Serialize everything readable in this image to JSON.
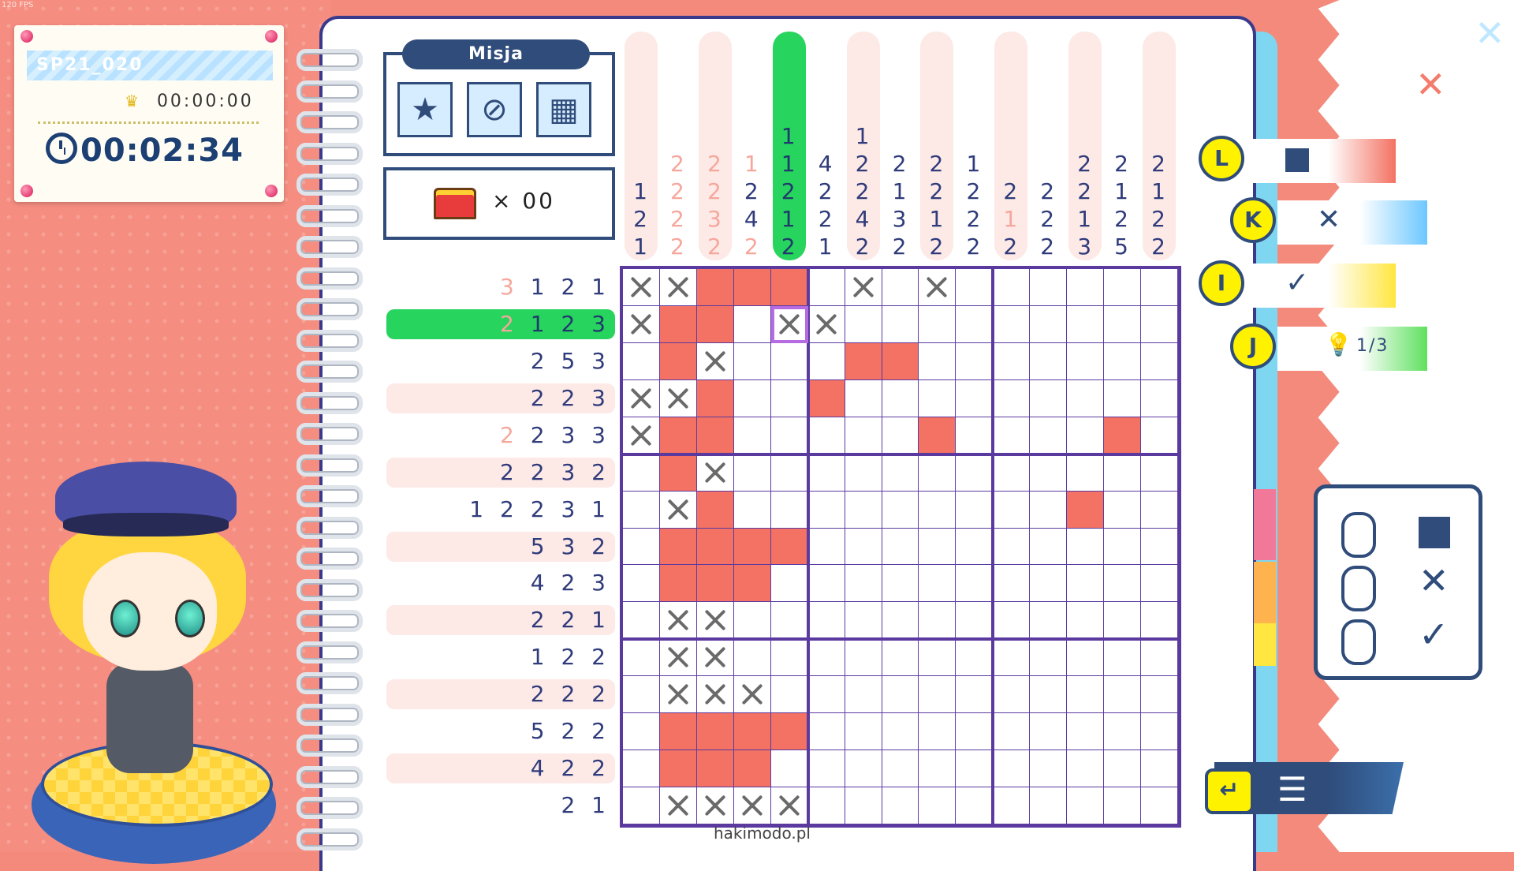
{
  "fps": "120 FPS",
  "timer": {
    "level_id": "SP21_020",
    "best_time": "00:00:00",
    "current_time": "00:02:34",
    "icons": [
      "crown-icon",
      "clock-icon"
    ]
  },
  "mission": {
    "title": "Misja",
    "icons": [
      "star-mission-icon",
      "no-hint-mission-icon",
      "mistakes-mission-icon"
    ],
    "chest_count": "× 00"
  },
  "column_clues": [
    {
      "nums": [
        "1",
        "2",
        "1"
      ],
      "faded": [
        false,
        false,
        false
      ]
    },
    {
      "nums": [
        "2",
        "2",
        "2",
        "2"
      ],
      "faded": [
        true,
        true,
        true,
        true
      ]
    },
    {
      "nums": [
        "2",
        "2",
        "3",
        "2"
      ],
      "faded": [
        true,
        true,
        true,
        true
      ]
    },
    {
      "nums": [
        "1",
        "2",
        "4",
        "2"
      ],
      "faded": [
        true,
        false,
        false,
        true
      ]
    },
    {
      "nums": [
        "1",
        "1",
        "2",
        "1",
        "2"
      ],
      "faded": [
        false,
        false,
        false,
        false,
        false
      ],
      "active": true
    },
    {
      "nums": [
        "4",
        "2",
        "2",
        "1"
      ],
      "faded": [
        false,
        false,
        false,
        false
      ]
    },
    {
      "nums": [
        "1",
        "2",
        "2",
        "4",
        "2"
      ],
      "faded": [
        false,
        false,
        false,
        false,
        false
      ]
    },
    {
      "nums": [
        "2",
        "1",
        "3",
        "2"
      ],
      "faded": [
        false,
        false,
        false,
        false
      ]
    },
    {
      "nums": [
        "2",
        "2",
        "1",
        "2"
      ],
      "faded": [
        false,
        false,
        false,
        false
      ]
    },
    {
      "nums": [
        "1",
        "2",
        "2",
        "2"
      ],
      "faded": [
        false,
        false,
        false,
        false
      ]
    },
    {
      "nums": [
        "2",
        "1",
        "2"
      ],
      "faded": [
        false,
        true,
        false
      ]
    },
    {
      "nums": [
        "2",
        "2",
        "2"
      ],
      "faded": [
        false,
        false,
        false
      ]
    },
    {
      "nums": [
        "2",
        "2",
        "1",
        "3"
      ],
      "faded": [
        false,
        false,
        false,
        false
      ]
    },
    {
      "nums": [
        "2",
        "1",
        "2",
        "5"
      ],
      "faded": [
        false,
        false,
        false,
        false
      ]
    },
    {
      "nums": [
        "2",
        "1",
        "2",
        "2"
      ],
      "faded": [
        false,
        false,
        false,
        false
      ]
    }
  ],
  "row_clues": [
    {
      "nums": [
        "3",
        "1",
        "2",
        "1"
      ],
      "faded": [
        true,
        false,
        false,
        false
      ]
    },
    {
      "nums": [
        "2",
        "1",
        "2",
        "3"
      ],
      "faded": [
        true,
        false,
        false,
        false
      ],
      "active": true
    },
    {
      "nums": [
        "2",
        "5",
        "3"
      ],
      "faded": [
        false,
        false,
        false
      ]
    },
    {
      "nums": [
        "2",
        "2",
        "3"
      ],
      "faded": [
        false,
        false,
        false
      ]
    },
    {
      "nums": [
        "2",
        "2",
        "3",
        "3"
      ],
      "faded": [
        true,
        false,
        false,
        false
      ]
    },
    {
      "nums": [
        "2",
        "2",
        "3",
        "2"
      ],
      "faded": [
        false,
        false,
        false,
        false
      ]
    },
    {
      "nums": [
        "1",
        "2",
        "2",
        "3",
        "1"
      ],
      "faded": [
        false,
        false,
        false,
        false,
        false
      ]
    },
    {
      "nums": [
        "5",
        "3",
        "2"
      ],
      "faded": [
        false,
        false,
        false
      ]
    },
    {
      "nums": [
        "4",
        "2",
        "3"
      ],
      "faded": [
        false,
        false,
        false
      ]
    },
    {
      "nums": [
        "2",
        "2",
        "1"
      ],
      "faded": [
        false,
        false,
        false
      ]
    },
    {
      "nums": [
        "1",
        "2",
        "2"
      ],
      "faded": [
        false,
        false,
        false
      ]
    },
    {
      "nums": [
        "2",
        "2",
        "2"
      ],
      "faded": [
        false,
        false,
        false
      ]
    },
    {
      "nums": [
        "5",
        "2",
        "2"
      ],
      "faded": [
        false,
        false,
        false
      ]
    },
    {
      "nums": [
        "4",
        "2",
        "2"
      ],
      "faded": [
        false,
        false,
        false
      ]
    },
    {
      "nums": [
        "2",
        "1"
      ],
      "faded": [
        false,
        false
      ]
    }
  ],
  "grid_rows": [
    "xxfff.x.x......",
    "xff.xx.........",
    ".fx...ff.......",
    "xxf..f.........",
    "xff.....f....f.",
    ".fx............",
    ".xf.........f..",
    ".ffff..........",
    ".fff...........",
    ".xx............",
    ".xx............",
    ".xxx...........",
    ".ffff..........",
    ".fff...........",
    ".xxxx.........."
  ],
  "controls": [
    {
      "key": "L",
      "action": "fill",
      "color": "#f37263"
    },
    {
      "key": "K",
      "action": "cross",
      "symbol": "✕",
      "color": "#6cc7ff"
    },
    {
      "key": "I",
      "action": "check",
      "symbol": "✓",
      "color": "#ffe640"
    },
    {
      "key": "J",
      "action": "hint",
      "text": "1/3",
      "color": "#5fe05f"
    }
  ],
  "mouse_panel": [
    {
      "button": "left",
      "symbol": ""
    },
    {
      "button": "right",
      "symbol": "✕"
    },
    {
      "button": "middle",
      "symbol": "✓"
    }
  ],
  "menu": {
    "back_symbol": "↵",
    "menu_symbol": "☰"
  },
  "watermark": "hakimodo.pl"
}
